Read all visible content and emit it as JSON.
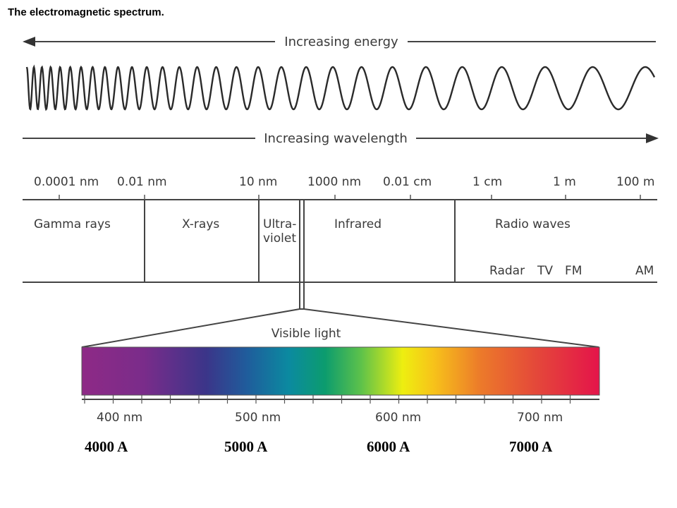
{
  "title": "The electromagnetic spectrum.",
  "arrows": {
    "energy": "Increasing energy",
    "wavelength": "Increasing wavelength"
  },
  "scale_labels": [
    "0.0001 nm",
    "0.01 nm",
    "10 nm",
    "1000 nm",
    "0.01 cm",
    "1 cm",
    "1 m",
    "100 m"
  ],
  "regions": {
    "gamma": "Gamma rays",
    "xrays": "X-rays",
    "uv_line1": "Ultra-",
    "uv_line2": "violet",
    "infrared": "Infrared",
    "radio": "Radio waves"
  },
  "radio_bands": [
    "Radar",
    "TV",
    "FM",
    "AM"
  ],
  "visible": {
    "label": "Visible light",
    "nm_labels": [
      "400 nm",
      "500 nm",
      "600 nm",
      "700 nm"
    ],
    "angstrom_labels": [
      "4000 A",
      "5000 A",
      "6000 A",
      "7000 A"
    ]
  }
}
